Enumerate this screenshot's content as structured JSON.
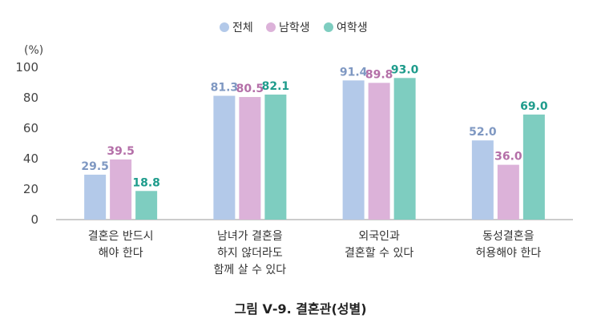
{
  "chart_data": {
    "type": "bar",
    "unit_label": "(%)",
    "ylim": [
      0,
      100
    ],
    "yticks": [
      0,
      20,
      40,
      60,
      80,
      100
    ],
    "grid": false,
    "legend_position": "top-center",
    "categories": [
      [
        "결혼은 반드시",
        "해야 한다"
      ],
      [
        "남녀가 결혼을",
        "하지 않더라도",
        "함께 살 수 있다"
      ],
      [
        "외국인과",
        "결혼할 수 있다"
      ],
      [
        "동성결혼을",
        "허용해야 한다"
      ]
    ],
    "series": [
      {
        "name": "전체",
        "color": "#b3c9e9",
        "label_color": "#7f98c2",
        "values": [
          29.5,
          81.3,
          91.4,
          52.0
        ]
      },
      {
        "name": "남학생",
        "color": "#dcb2d9",
        "label_color": "#b46fa8",
        "values": [
          39.5,
          80.5,
          89.8,
          36.0
        ]
      },
      {
        "name": "여학생",
        "color": "#7ecdc0",
        "label_color": "#1f9c8c",
        "values": [
          18.8,
          82.1,
          93.0,
          69.0
        ]
      }
    ]
  },
  "caption": "그림 Ⅴ-9. 결혼관(성별)"
}
